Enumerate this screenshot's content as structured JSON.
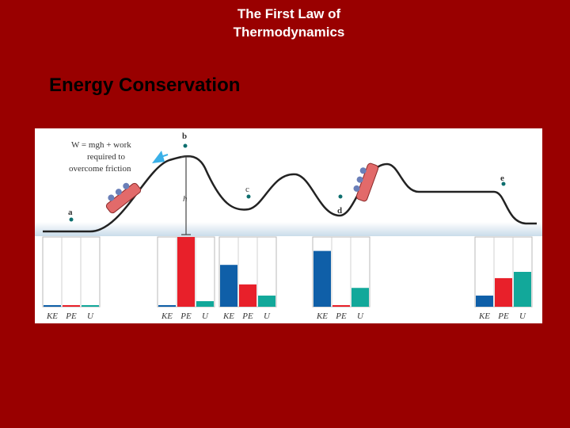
{
  "slide": {
    "title_line1": "The First Law of",
    "title_line2": "Thermodynamics",
    "subtitle": "Energy Conservation"
  },
  "figure": {
    "work_label_line1": "W = mgh + work",
    "work_label_line2": "required to",
    "work_label_line3": "overcome friction",
    "height_label": "h",
    "points": [
      "a",
      "b",
      "c",
      "d",
      "e"
    ],
    "bar_axis_labels": [
      "KE",
      "PE",
      "U"
    ],
    "bar_groups": [
      {
        "name": "a",
        "KE": 0.02,
        "PE": 0.02,
        "U": 0.02
      },
      {
        "name": "b",
        "KE": 0.02,
        "PE": 1.0,
        "U": 0.08
      },
      {
        "name": "c",
        "KE": 0.6,
        "PE": 0.32,
        "U": 0.16
      },
      {
        "name": "d",
        "KE": 0.8,
        "PE": 0.02,
        "U": 0.27
      },
      {
        "name": "e",
        "KE": 0.16,
        "PE": 0.41,
        "U": 0.5
      }
    ],
    "colors": {
      "KE": "#0f5fa8",
      "PE": "#e8202a",
      "U": "#12a89a",
      "track": "#222222",
      "dot": "#0d6e6e",
      "gradient": "#c9dcea"
    },
    "icons": [
      "roller-coaster-car-icon",
      "arrow-icon"
    ]
  }
}
